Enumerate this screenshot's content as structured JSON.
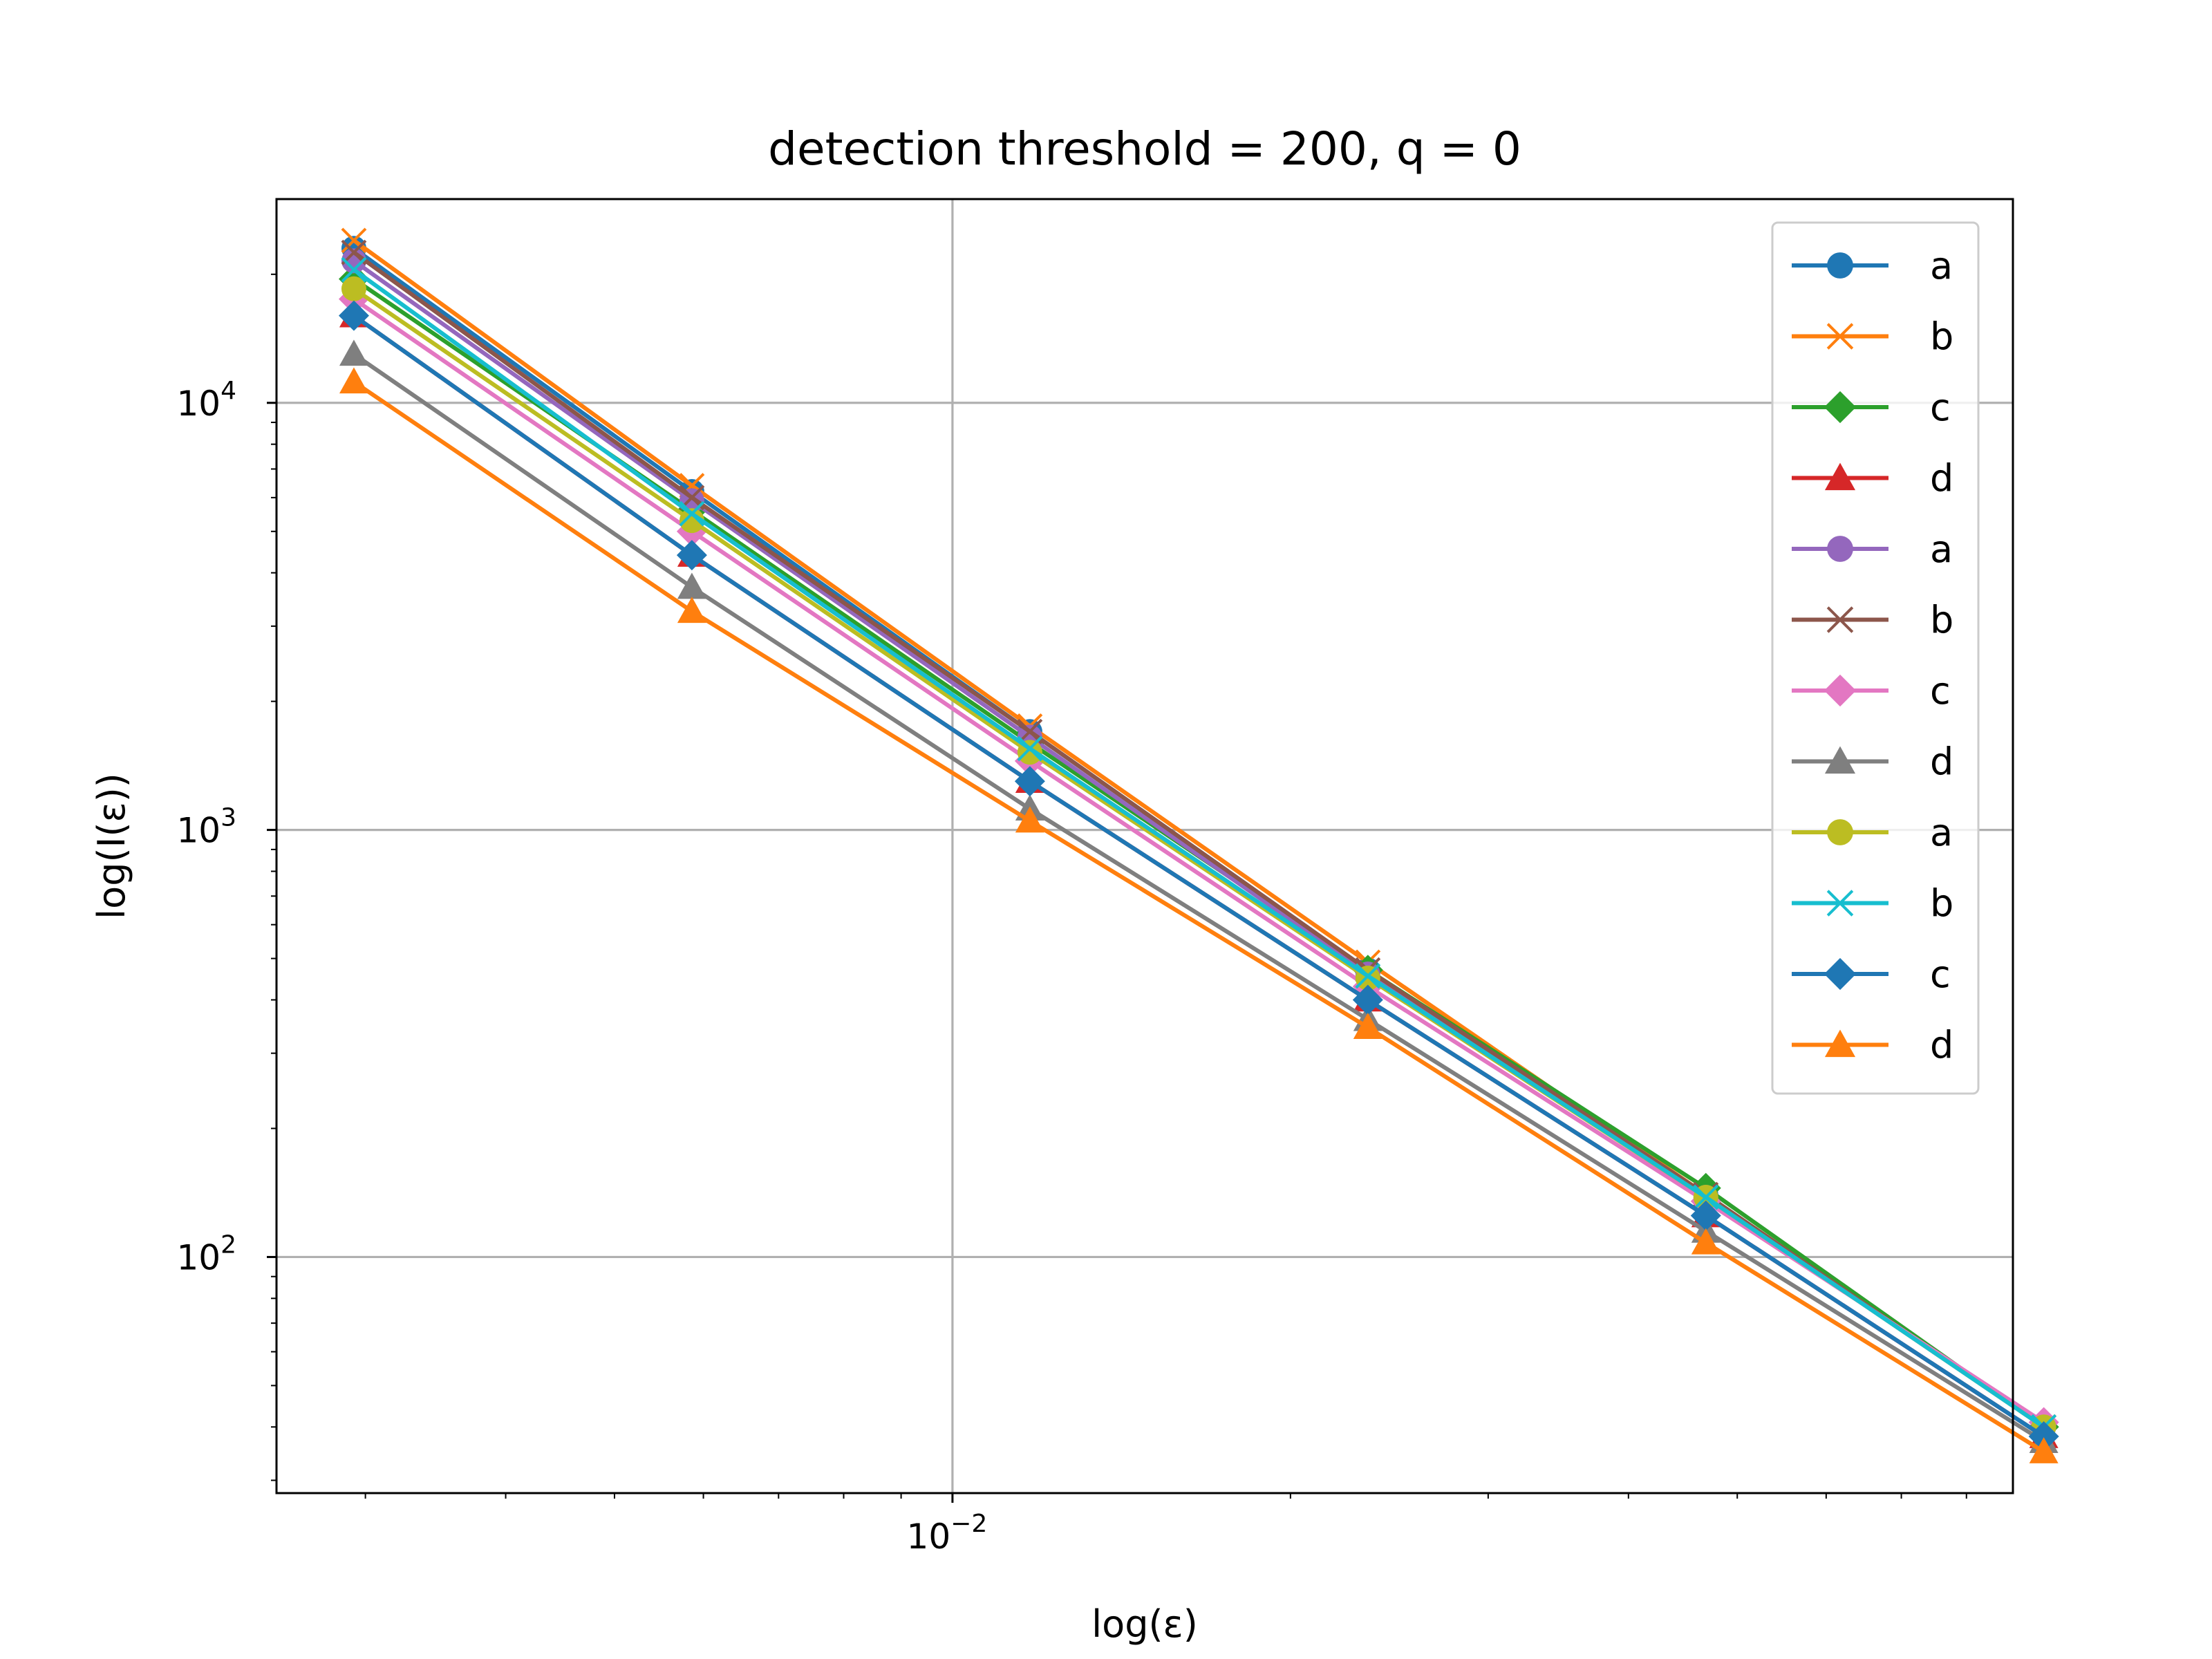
{
  "chart_data": {
    "type": "line",
    "title": "detection threshold = 200, q = 0",
    "xlabel": "log(ε)",
    "ylabel": "log(I(ε))",
    "xscale": "log",
    "yscale": "log",
    "xlim": [
      0.0025,
      0.088
    ],
    "ylim": [
      28,
      30000
    ],
    "grid": true,
    "legend_position": "top-right",
    "x_ticks": [
      {
        "base": "10",
        "exp": "−2",
        "value": 0.01
      }
    ],
    "y_ticks": [
      {
        "base": "10",
        "exp": "2",
        "value": 100
      },
      {
        "base": "10",
        "exp": "3",
        "value": 1000
      },
      {
        "base": "10",
        "exp": "4",
        "value": 10000
      }
    ],
    "x": [
      0.00293,
      0.00586,
      0.01172,
      0.02344,
      0.04688,
      0.09375
    ],
    "series": [
      {
        "name": "a",
        "color": "#1f77b4",
        "marker": "circle",
        "values": [
          23000,
          6200,
          1700,
          470,
          140,
          40
        ]
      },
      {
        "name": "b",
        "color": "#ff7f0e",
        "marker": "x",
        "values": [
          24000,
          6400,
          1750,
          490,
          140,
          40
        ]
      },
      {
        "name": "c",
        "color": "#2ca02c",
        "marker": "diamond",
        "values": [
          19500,
          5600,
          1600,
          470,
          145,
          40
        ]
      },
      {
        "name": "d",
        "color": "#d62728",
        "marker": "triangle",
        "values": [
          16000,
          4400,
          1300,
          400,
          125,
          38
        ]
      },
      {
        "name": "a",
        "color": "#9467bd",
        "marker": "circle",
        "values": [
          21500,
          5900,
          1650,
          460,
          138,
          40
        ]
      },
      {
        "name": "b",
        "color": "#8c564b",
        "marker": "x",
        "values": [
          22500,
          6000,
          1700,
          470,
          140,
          40
        ]
      },
      {
        "name": "c",
        "color": "#e377c2",
        "marker": "diamond",
        "values": [
          17500,
          5000,
          1450,
          430,
          135,
          41
        ]
      },
      {
        "name": "d",
        "color": "#7f7f7f",
        "marker": "triangle",
        "values": [
          13000,
          3700,
          1120,
          360,
          115,
          37
        ]
      },
      {
        "name": "a",
        "color": "#bcbd22",
        "marker": "circle",
        "values": [
          18500,
          5300,
          1520,
          450,
          138,
          40
        ]
      },
      {
        "name": "b",
        "color": "#17becf",
        "marker": "x",
        "values": [
          20500,
          5500,
          1550,
          455,
          138,
          40
        ]
      },
      {
        "name": "c",
        "color": "#1f77b4",
        "marker": "diamond",
        "values": [
          16000,
          4400,
          1300,
          400,
          125,
          38
        ]
      },
      {
        "name": "d",
        "color": "#ff7f0e",
        "marker": "triangle",
        "values": [
          11200,
          3250,
          1050,
          345,
          108,
          35
        ]
      }
    ]
  }
}
